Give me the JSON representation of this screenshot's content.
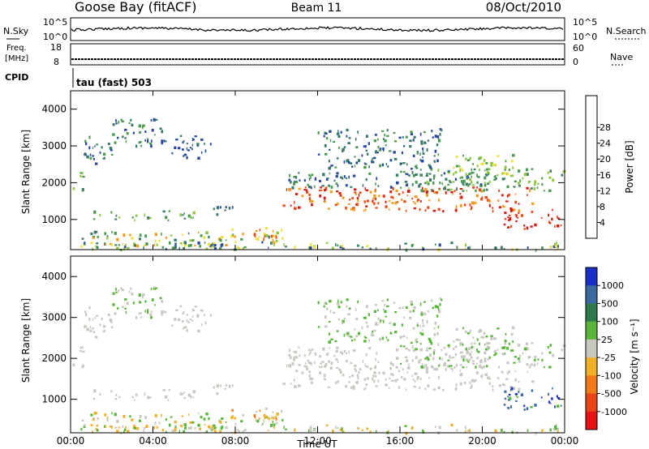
{
  "header": {
    "station": "Goose Bay (fitACF)",
    "beam": "Beam 11",
    "date": "08/Oct/2010"
  },
  "noise_panel": {
    "left_label": "N.Sky",
    "right_label": "N.Search",
    "left_ticks": [
      "10^5",
      "10^0"
    ],
    "right_ticks": [
      "10^5",
      "10^0"
    ]
  },
  "freq_panel": {
    "left_label_line1": "Freq.",
    "left_label_line2": "[MHz]",
    "right_label": "Nave",
    "left_ticks": [
      "18",
      "8"
    ],
    "right_ticks": [
      "60",
      "0"
    ]
  },
  "cpid_panel": {
    "label": "CPID",
    "text": "tau (fast) 503"
  },
  "chart_data": [
    {
      "type": "heatmap",
      "name": "power",
      "ylabel": "Slant Range [km]",
      "ylim": [
        180,
        4500
      ],
      "yticks": [
        "1000",
        "2000",
        "3000",
        "4000"
      ],
      "colorbar_label": "Power [dB]",
      "colorbar_ticks": [
        "4",
        "8",
        "12",
        "16",
        "20",
        "24",
        "28"
      ],
      "colorbar_colors": [
        "#1f1fe6",
        "#27489e",
        "#3a7a6a",
        "#4a9a50",
        "#8fc63a",
        "#f2e03a",
        "#f29a1a",
        "#ee4a15",
        "#d81b12"
      ]
    },
    {
      "type": "heatmap",
      "name": "velocity",
      "ylabel": "Slant Range [km]",
      "ylim": [
        180,
        4500
      ],
      "yticks": [
        "1000",
        "2000",
        "3000",
        "4000"
      ],
      "colorbar_label": "Velocity [m s⁻¹]",
      "colorbar_ticks": [
        "1000",
        "500",
        "100",
        "25",
        "-25",
        "-100",
        "-500",
        "-1000"
      ],
      "colorbar_colors": [
        "#1a2ec8",
        "#3a6aa0",
        "#2e7a4a",
        "#5ab63a",
        "#c8c8c0",
        "#f0b02a",
        "#f27a18",
        "#e84418",
        "#e81212"
      ],
      "xlabel": "Time UT",
      "xticks": [
        "00:00",
        "04:00",
        "08:00",
        "12:00",
        "16:00",
        "20:00",
        "00:00"
      ]
    }
  ]
}
